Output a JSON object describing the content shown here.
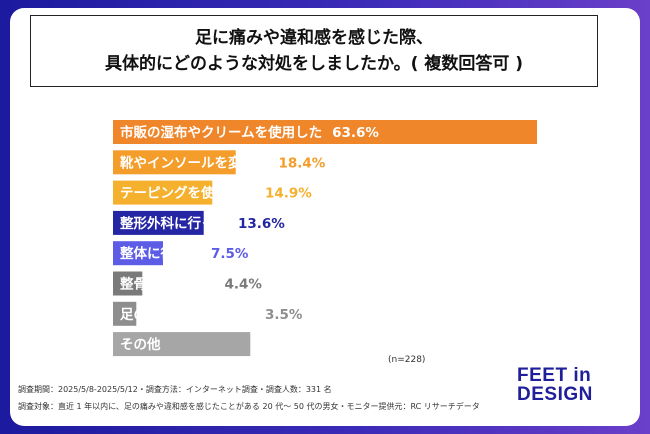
{
  "title": {
    "line1": "足に痛みや違和感を感じた際、",
    "line2": "具体的にどのような対処をしましたか。( 複数回答可 )"
  },
  "chart_data": {
    "type": "bar",
    "orientation": "horizontal",
    "unit": "%",
    "categories": [
      "市販の湿布やクリームを使用した",
      "靴やインソールを変えた",
      "テーピングを使用した",
      "整形外科に行った",
      "整体に行った",
      "整骨院に行った",
      "足の専門家に相談した",
      "その他"
    ],
    "values": [
      63.6,
      18.4,
      14.9,
      13.6,
      7.5,
      4.4,
      3.5,
      20.6
    ],
    "colors": [
      "#f0862a",
      "#f59d2a",
      "#f5b12e",
      "#2526a3",
      "#5c5ce6",
      "#7a7a7a",
      "#8e8e8e",
      "#a6a6a6"
    ],
    "label_colors": [
      "#f0862a",
      "#f59d2a",
      "#f5b12e",
      "#2526a3",
      "#5c5ce6",
      "#7a7a7a",
      "#8e8e8e",
      "#a6a6a6"
    ],
    "xlim": [
      0,
      63.6
    ],
    "grid": false,
    "legend": "none"
  },
  "note": "(n=228)",
  "footer": {
    "line1": "調査期間：2025/5/8-2025/5/12・調査方法：インターネット調査・調査人数：331 名",
    "line2": "調査対象：直近 1 年以内に、足の痛みや違和感を感じたことがある 20 代～ 50 代の男女・モニター提供元：RC リサーチデータ"
  },
  "logo": {
    "line1": "FEET in",
    "line2": "DESIGN"
  }
}
